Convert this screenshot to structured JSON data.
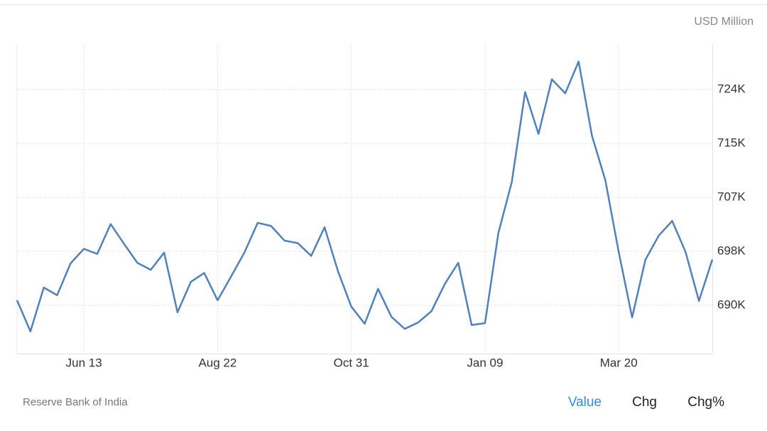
{
  "chart_data": {
    "type": "line",
    "y_label": "USD Million",
    "categories": [
      null,
      null,
      null,
      null,
      null,
      "Jun 13",
      null,
      null,
      null,
      null,
      null,
      null,
      null,
      null,
      null,
      "Aug 22",
      null,
      null,
      null,
      null,
      null,
      null,
      null,
      null,
      null,
      "Oct 31",
      null,
      null,
      null,
      null,
      null,
      null,
      null,
      null,
      null,
      "Jan 09",
      null,
      null,
      null,
      null,
      null,
      null,
      null,
      null,
      null,
      "Mar 20",
      null,
      null,
      null,
      null,
      null,
      null,
      null
    ],
    "series": [
      {
        "color": "#4f81bd",
        "values": [
          690600,
          685700,
          692600,
          691400,
          696400,
          698700,
          697900,
          702600,
          699500,
          696500,
          695400,
          698100,
          688700,
          693500,
          694900,
          690600,
          694300,
          698100,
          702800,
          702300,
          700000,
          699600,
          697600,
          702100,
          695200,
          689600,
          686900,
          692400,
          688000,
          686100,
          687100,
          688900,
          693200,
          696500,
          686700,
          687000,
          701200,
          709200,
          723400,
          716800,
          725400,
          723200,
          728200,
          716500,
          709500,
          698200,
          687900,
          697000,
          700800,
          703100,
          698200,
          690500,
          697000
        ]
      }
    ],
    "ylim": [
      682200,
      730960
    ],
    "yticks": [
      {
        "value": 689800,
        "label": "690K"
      },
      {
        "value": 698300,
        "label": "698K"
      },
      {
        "value": 706800,
        "label": "707K"
      },
      {
        "value": 715300,
        "label": "715K"
      },
      {
        "value": 723800,
        "label": "724K"
      }
    ],
    "grid": true
  },
  "footer": {
    "source": "Reserve Bank of India",
    "tabs": [
      "Value",
      "Chg",
      "Chg%"
    ],
    "active_tab": 0
  }
}
